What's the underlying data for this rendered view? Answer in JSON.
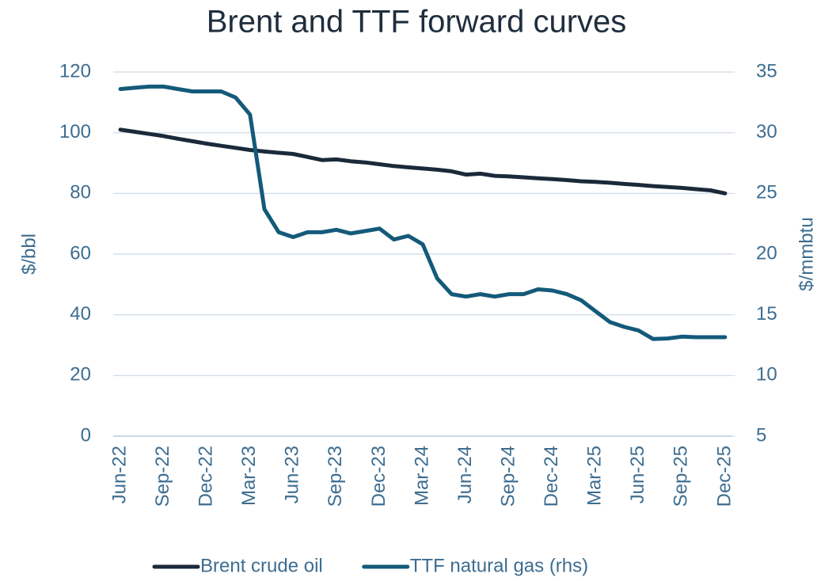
{
  "chart_data": {
    "type": "line",
    "title": "Brent and TTF forward curves",
    "ylabel": "$/bbl",
    "y2label": "$/mmbtu",
    "categories": [
      "Jun-22",
      null,
      null,
      "Sep-22",
      null,
      null,
      "Dec-22",
      null,
      null,
      "Mar-23",
      null,
      null,
      "Jun-23",
      null,
      null,
      "Sep-23",
      null,
      null,
      "Dec-23",
      null,
      null,
      "Mar-24",
      null,
      null,
      "Jun-24",
      null,
      null,
      "Sep-24",
      null,
      null,
      "Dec-24",
      null,
      null,
      "Mar-25",
      null,
      null,
      "Jun-25",
      null,
      null,
      "Sep-25",
      null,
      null,
      "Dec-25"
    ],
    "series": [
      {
        "name": "Brent crude oil",
        "color": "#1b2a3a",
        "axis": "y",
        "values": [
          101,
          100.3,
          99.6,
          98.9,
          98,
          97.2,
          96.4,
          95.7,
          95,
          94.3,
          93.8,
          93.4,
          93,
          92,
          91,
          91.2,
          90.6,
          90.2,
          89.6,
          89,
          88.6,
          88.2,
          87.8,
          87.3,
          86.2,
          86.5,
          85.8,
          85.6,
          85.3,
          85,
          84.7,
          84.4,
          84,
          83.8,
          83.5,
          83.1,
          82.8,
          82.4,
          82.1,
          81.8,
          81.4,
          81,
          80
        ]
      },
      {
        "name": "TTF natural gas (rhs)",
        "color": "#145a7a",
        "axis": "y2",
        "values": [
          33.6,
          33.7,
          33.8,
          33.8,
          33.6,
          33.4,
          33.4,
          33.4,
          32.9,
          31.5,
          23.7,
          21.8,
          21.4,
          21.8,
          21.8,
          22.0,
          21.7,
          21.9,
          22.1,
          21.2,
          21.5,
          20.8,
          18.0,
          16.7,
          16.5,
          16.7,
          16.5,
          16.7,
          16.7,
          17.1,
          17.0,
          16.7,
          16.2,
          15.3,
          14.4,
          14.0,
          13.7,
          13.0,
          13.05,
          13.2,
          13.15,
          13.15,
          13.15
        ]
      }
    ],
    "ylim": [
      0,
      120
    ],
    "yticks": [
      0,
      20,
      40,
      60,
      80,
      100,
      120
    ],
    "y2lim": [
      5,
      35
    ],
    "y2ticks": [
      5,
      10,
      15,
      20,
      25,
      30,
      35
    ],
    "grid": true,
    "legend": "bottom"
  }
}
